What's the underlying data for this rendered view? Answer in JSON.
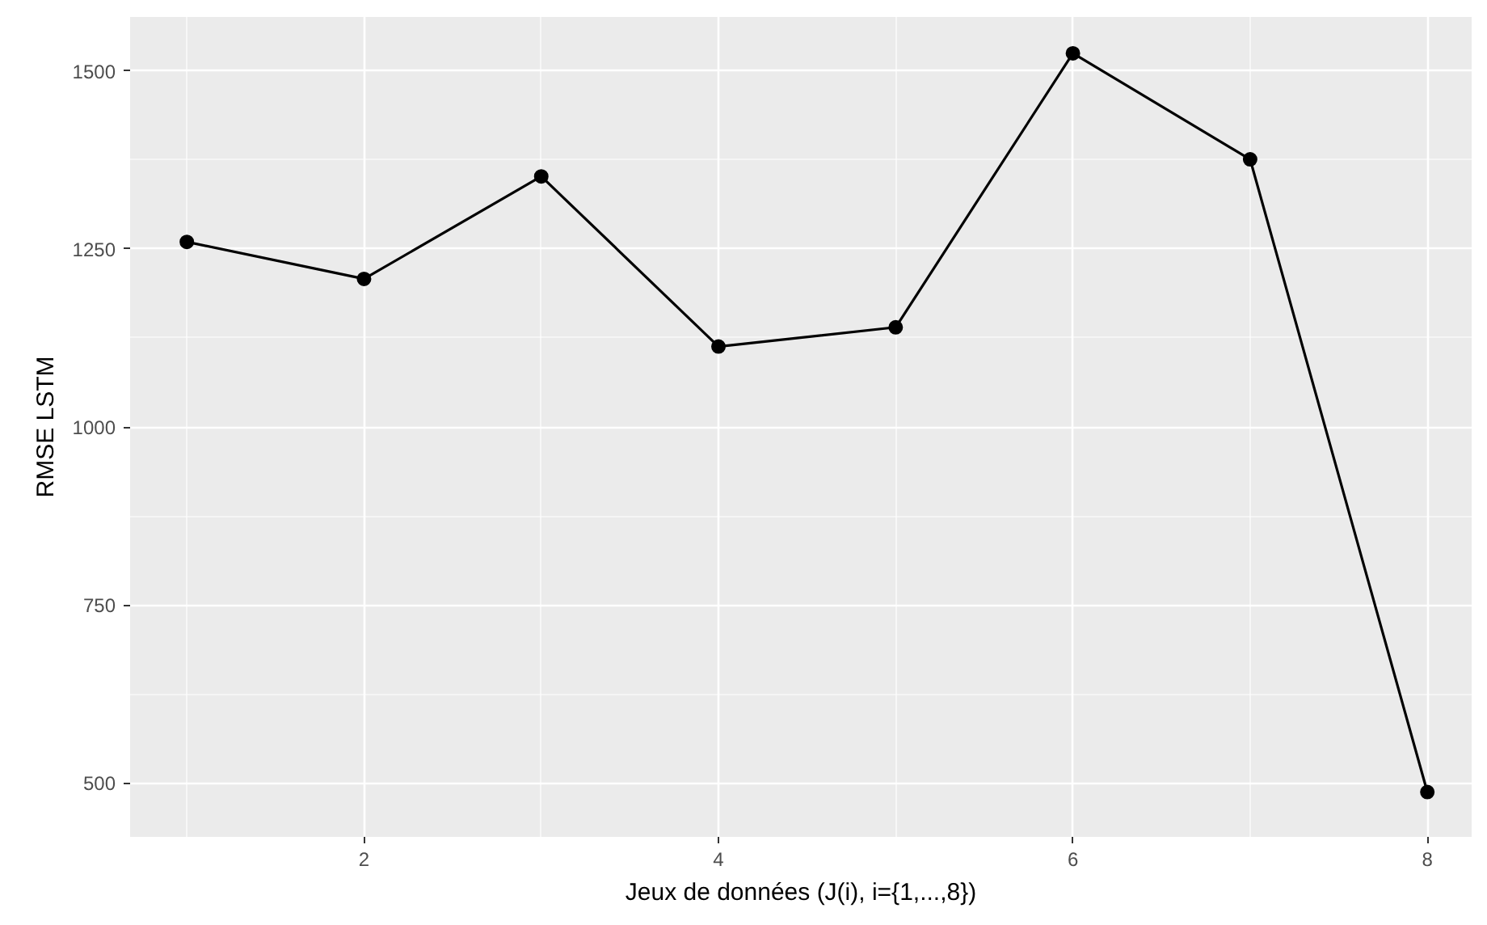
{
  "chart_data": {
    "type": "line",
    "xlabel": "Jeux de données (J(i), i={1,...,8})",
    "ylabel": "RMSE LSTM",
    "x": [
      1,
      2,
      3,
      4,
      5,
      6,
      7,
      8
    ],
    "series": [
      {
        "color": "#000000",
        "values": [
          1260,
          1208,
          1352,
          1113,
          1140,
          1525,
          1376,
          487
        ]
      }
    ],
    "xlim": [
      0.68,
      8.25
    ],
    "ylim": [
      424,
      1576
    ],
    "xticks": [
      2,
      4,
      6,
      8
    ],
    "yticks": [
      500,
      750,
      1000,
      1250,
      1500
    ],
    "grid": true,
    "marker": "circle",
    "line_style": "solid"
  }
}
